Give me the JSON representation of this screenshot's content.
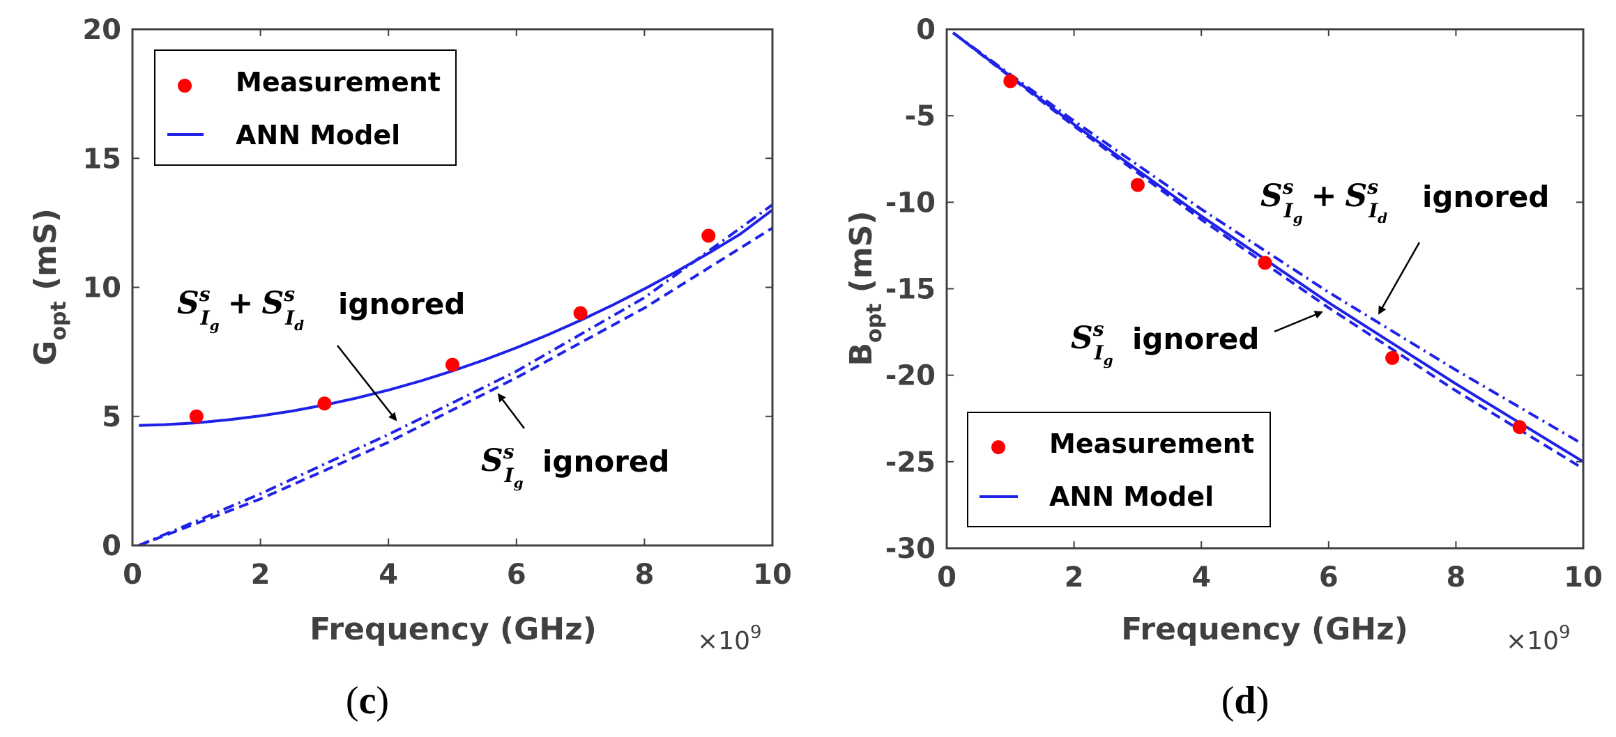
{
  "figure": {
    "colors": {
      "series": "#1f22e6",
      "marker": "#ff0000",
      "axis": "#404040",
      "arrow": "#000000"
    }
  },
  "chart_data": [
    {
      "type": "line",
      "panel_caption": "(c)",
      "xlabel": "Frequency (GHz)",
      "x_multiplier": "×10",
      "x_multiplier_exp": "9",
      "ylabel": "G",
      "ylabel_sub": "opt",
      "ylabel_unit": " (mS)",
      "xlim": [
        0,
        10
      ],
      "ylim": [
        0,
        20
      ],
      "xticks": [
        "0",
        "2",
        "4",
        "6",
        "8",
        "10"
      ],
      "yticks": [
        "0",
        "5",
        "10",
        "15",
        "20"
      ],
      "legend_position": "top-left",
      "legend": [
        "Measurement",
        "ANN Model"
      ],
      "series": [
        {
          "name": "Measurement",
          "style": "markers",
          "x": [
            1,
            3,
            5,
            7,
            9
          ],
          "y": [
            5.0,
            5.5,
            7.0,
            9.0,
            12.0
          ]
        },
        {
          "name": "ANN Model",
          "style": "solid",
          "x": [
            0.1,
            0.5,
            1,
            1.5,
            2,
            2.5,
            3,
            3.5,
            4,
            4.5,
            5,
            5.5,
            6,
            6.5,
            7,
            7.5,
            8,
            8.5,
            9,
            9.5,
            10
          ],
          "y": [
            4.65,
            4.68,
            4.75,
            4.87,
            5.02,
            5.21,
            5.44,
            5.71,
            6.02,
            6.37,
            6.76,
            7.19,
            7.66,
            8.17,
            8.72,
            9.31,
            9.94,
            10.61,
            11.32,
            12.07,
            13.0
          ]
        },
        {
          "style": "dashdot",
          "x": [
            0.1,
            2,
            4,
            6,
            8,
            10
          ],
          "y": [
            0.0,
            2.0,
            4.3,
            6.75,
            9.6,
            13.2
          ]
        },
        {
          "style": "dashed",
          "x": [
            0.1,
            2,
            4,
            6,
            8,
            10
          ],
          "y": [
            0.0,
            1.8,
            4.0,
            6.5,
            9.2,
            12.3
          ]
        }
      ],
      "annotations": [
        {
          "text": "ignored",
          "symbol": "S",
          "sub_a": "I",
          "sub_a2": "g",
          "plus": "+",
          "sub_b": "I",
          "sub_b2": "d",
          "sup": "s"
        },
        {
          "text": "ignored",
          "symbol": "S",
          "sub_a": "I",
          "sub_a2": "g",
          "sup": "s"
        }
      ]
    },
    {
      "type": "line",
      "panel_caption": "(d)",
      "xlabel": "Frequency (GHz)",
      "x_multiplier": "×10",
      "x_multiplier_exp": "9",
      "ylabel": "B",
      "ylabel_sub": "opt",
      "ylabel_unit": " (mS)",
      "xlim": [
        0,
        10
      ],
      "ylim": [
        -30,
        0
      ],
      "xticks": [
        "0",
        "2",
        "4",
        "6",
        "8",
        "10"
      ],
      "yticks": [
        "0",
        "-5",
        "-10",
        "-15",
        "-20",
        "-25",
        "-30"
      ],
      "legend_position": "bottom-left",
      "legend": [
        "Measurement",
        "ANN Model"
      ],
      "series": [
        {
          "name": "Measurement",
          "style": "markers",
          "x": [
            1,
            3,
            5,
            7,
            9
          ],
          "y": [
            -3.0,
            -9.0,
            -13.5,
            -19.0,
            -23.0
          ]
        },
        {
          "name": "ANN Model",
          "style": "solid",
          "x": [
            0.1,
            2,
            4,
            6,
            8,
            10
          ],
          "y": [
            -0.2,
            -5.5,
            -10.8,
            -15.8,
            -20.5,
            -25.0
          ]
        },
        {
          "style": "dashdot",
          "x": [
            0.1,
            2,
            4,
            6,
            8,
            10
          ],
          "y": [
            -0.2,
            -5.3,
            -10.4,
            -15.2,
            -19.7,
            -24.0
          ]
        },
        {
          "style": "dashed",
          "x": [
            0.1,
            2,
            4,
            6,
            8,
            10
          ],
          "y": [
            -0.2,
            -5.6,
            -11.0,
            -16.1,
            -20.9,
            -25.4
          ]
        }
      ],
      "annotations": [
        {
          "text": "ignored",
          "symbol": "S",
          "sub_a": "I",
          "sub_a2": "g",
          "plus": "+",
          "sub_b": "I",
          "sub_b2": "d",
          "sup": "s"
        },
        {
          "text": "ignored",
          "symbol": "S",
          "sub_a": "I",
          "sub_a2": "g",
          "sup": "s"
        }
      ]
    }
  ]
}
